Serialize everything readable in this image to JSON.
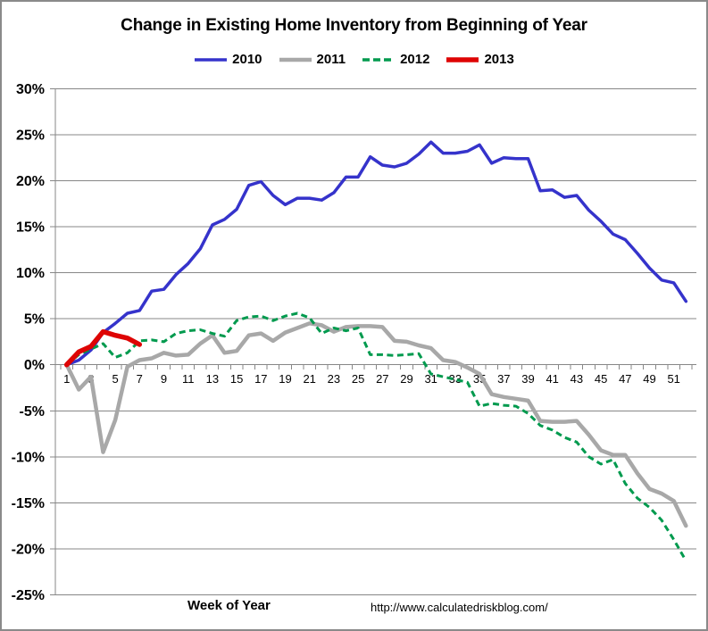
{
  "footer": {
    "url": "http://www.calculatedriskblog.com/"
  },
  "colors": {
    "grid": "#878787",
    "frame_border": "#8a8a8a",
    "series_2010": "#3533cb",
    "series_2011": "#a8a8a8",
    "series_2012": "#009a4e",
    "series_2013": "#de0404",
    "text": "#000000"
  },
  "chart_data": {
    "type": "line",
    "title": "Change in Existing Home Inventory from Beginning of Year",
    "xlabel": "Week of Year",
    "ylabel": "",
    "grid": true,
    "legend_position": "top",
    "ylim": [
      -25,
      30
    ],
    "y_tick_values": [
      30,
      25,
      20,
      15,
      10,
      5,
      0,
      -5,
      -10,
      -15,
      -20,
      -25
    ],
    "y_tick_labels": [
      "30%",
      "25%",
      "20%",
      "15%",
      "10%",
      "5%",
      "0%",
      "-5%",
      "-10%",
      "-15%",
      "-20%",
      "-25%"
    ],
    "x": [
      1,
      2,
      3,
      4,
      5,
      6,
      7,
      8,
      9,
      10,
      11,
      12,
      13,
      14,
      15,
      16,
      17,
      18,
      19,
      20,
      21,
      22,
      23,
      24,
      25,
      26,
      27,
      28,
      29,
      30,
      31,
      32,
      33,
      34,
      35,
      36,
      37,
      38,
      39,
      40,
      41,
      42,
      43,
      44,
      45,
      46,
      47,
      48,
      49,
      50,
      51,
      52
    ],
    "x_tick_labels": [
      1,
      3,
      5,
      7,
      9,
      11,
      13,
      15,
      17,
      19,
      21,
      23,
      25,
      27,
      29,
      31,
      33,
      35,
      37,
      39,
      41,
      43,
      45,
      47,
      49,
      51
    ],
    "series": [
      {
        "name": "2010",
        "style": "solid",
        "width": 3.5,
        "color_key": "series_2010",
        "values": [
          0.0,
          0.5,
          1.6,
          3.5,
          4.5,
          5.6,
          5.9,
          8.0,
          8.2,
          9.8,
          11.0,
          12.6,
          15.2,
          15.8,
          16.9,
          19.5,
          19.9,
          18.4,
          17.4,
          18.1,
          18.1,
          17.9,
          18.7,
          20.4,
          20.4,
          22.6,
          21.7,
          21.5,
          21.9,
          22.9,
          24.2,
          23.0,
          23.0,
          23.2,
          23.9,
          21.9,
          22.5,
          22.4,
          22.4,
          18.9,
          19.0,
          18.2,
          18.4,
          16.8,
          15.6,
          14.2,
          13.6,
          12.1,
          10.5,
          9.2,
          8.9,
          6.9
        ]
      },
      {
        "name": "2011",
        "style": "solid",
        "width": 4.5,
        "color_key": "series_2011",
        "values": [
          0.0,
          -2.7,
          -1.3,
          -9.5,
          -6.0,
          -0.2,
          0.5,
          0.7,
          1.3,
          1.0,
          1.1,
          2.3,
          3.2,
          1.3,
          1.5,
          3.2,
          3.4,
          2.6,
          3.5,
          4.0,
          4.5,
          4.3,
          3.6,
          4.1,
          4.2,
          4.2,
          4.1,
          2.6,
          2.5,
          2.1,
          1.8,
          0.5,
          0.3,
          -0.3,
          -1.0,
          -3.2,
          -3.5,
          -3.7,
          -3.9,
          -6.1,
          -6.2,
          -6.2,
          -6.1,
          -7.6,
          -9.3,
          -9.8,
          -9.8,
          -11.8,
          -13.5,
          -14.0,
          -14.8,
          -17.5
        ]
      },
      {
        "name": "2012",
        "style": "dashed",
        "width": 3,
        "color_key": "series_2012",
        "values": [
          0.0,
          1.1,
          1.7,
          2.3,
          0.8,
          1.3,
          2.6,
          2.7,
          2.5,
          3.4,
          3.7,
          3.8,
          3.4,
          3.1,
          4.8,
          5.2,
          5.3,
          4.8,
          5.3,
          5.6,
          5.1,
          3.4,
          4.0,
          3.7,
          4.0,
          1.1,
          1.1,
          1.0,
          1.1,
          1.2,
          -1.0,
          -1.3,
          -1.6,
          -1.9,
          -4.5,
          -4.2,
          -4.4,
          -4.5,
          -5.3,
          -6.6,
          -7.1,
          -7.9,
          -8.4,
          -10.0,
          -10.8,
          -10.3,
          -12.9,
          -14.5,
          -15.5,
          -16.9,
          -19.0,
          -21.3
        ]
      },
      {
        "name": "2013",
        "style": "solid",
        "width": 5.5,
        "color_key": "series_2013",
        "values": [
          0.0,
          1.4,
          2.0,
          3.6,
          3.2,
          2.9,
          2.2
        ]
      }
    ]
  }
}
